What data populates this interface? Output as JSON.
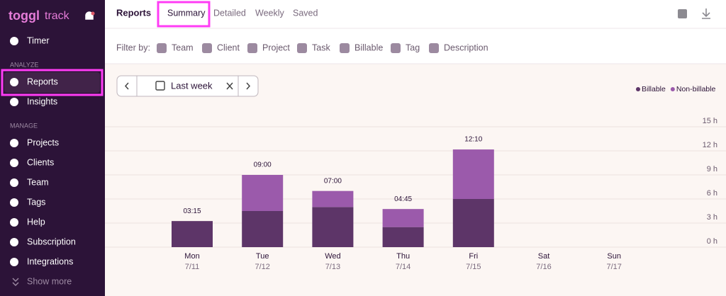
{
  "sidebar": {
    "brand": "toggl",
    "product": "track",
    "top_items": [
      "Timer"
    ],
    "analyze_heading": "ANALYZE",
    "analyze_items": [
      "Reports",
      "Insights"
    ],
    "manage_heading": "MANAGE",
    "manage_items": [
      "Projects",
      "Clients",
      "Team",
      "Tags",
      "Help",
      "Subscription",
      "Integrations"
    ],
    "show_more": "Show more"
  },
  "header": {
    "title": "Reports",
    "tabs": [
      "Summary",
      "Detailed",
      "Weekly",
      "Saved"
    ]
  },
  "filters": {
    "label": "Filter by:",
    "items": [
      "Team",
      "Client",
      "Project",
      "Task",
      "Billable",
      "Tag",
      "Description"
    ]
  },
  "date_picker": {
    "label": "Last week"
  },
  "chart_data": {
    "type": "bar",
    "stacked": true,
    "categories": [
      "Mon",
      "Tue",
      "Wed",
      "Thu",
      "Fri",
      "Sat",
      "Sun"
    ],
    "dates": [
      "7/11",
      "7/12",
      "7/13",
      "7/14",
      "7/15",
      "7/16",
      "7/17"
    ],
    "series": [
      {
        "name": "Billable",
        "color": "#5d3568",
        "values": [
          3.25,
          4.5,
          5,
          2.5,
          6,
          null,
          null
        ]
      },
      {
        "name": "Non-billable",
        "color": "#9b5aab",
        "values": [
          0,
          4.5,
          2,
          2.25,
          6.17,
          null,
          null
        ]
      }
    ],
    "totals": [
      3.25,
      9,
      7,
      4.75,
      12.17,
      null,
      null
    ],
    "total_labels": [
      "03:15",
      "09:00",
      "07:00",
      "04:45",
      "12:10",
      null,
      null
    ],
    "ylim": [
      0,
      15
    ],
    "yticks": [
      {
        "value": 0,
        "label": "0 h"
      },
      {
        "value": 3,
        "label": "3 h"
      },
      {
        "value": 6,
        "label": "6 h"
      },
      {
        "value": 9,
        "label": "9 h"
      },
      {
        "value": 12,
        "label": "12 h"
      },
      {
        "value": 15,
        "label": "15 h"
      }
    ],
    "grid": true,
    "legend": "top-right"
  }
}
